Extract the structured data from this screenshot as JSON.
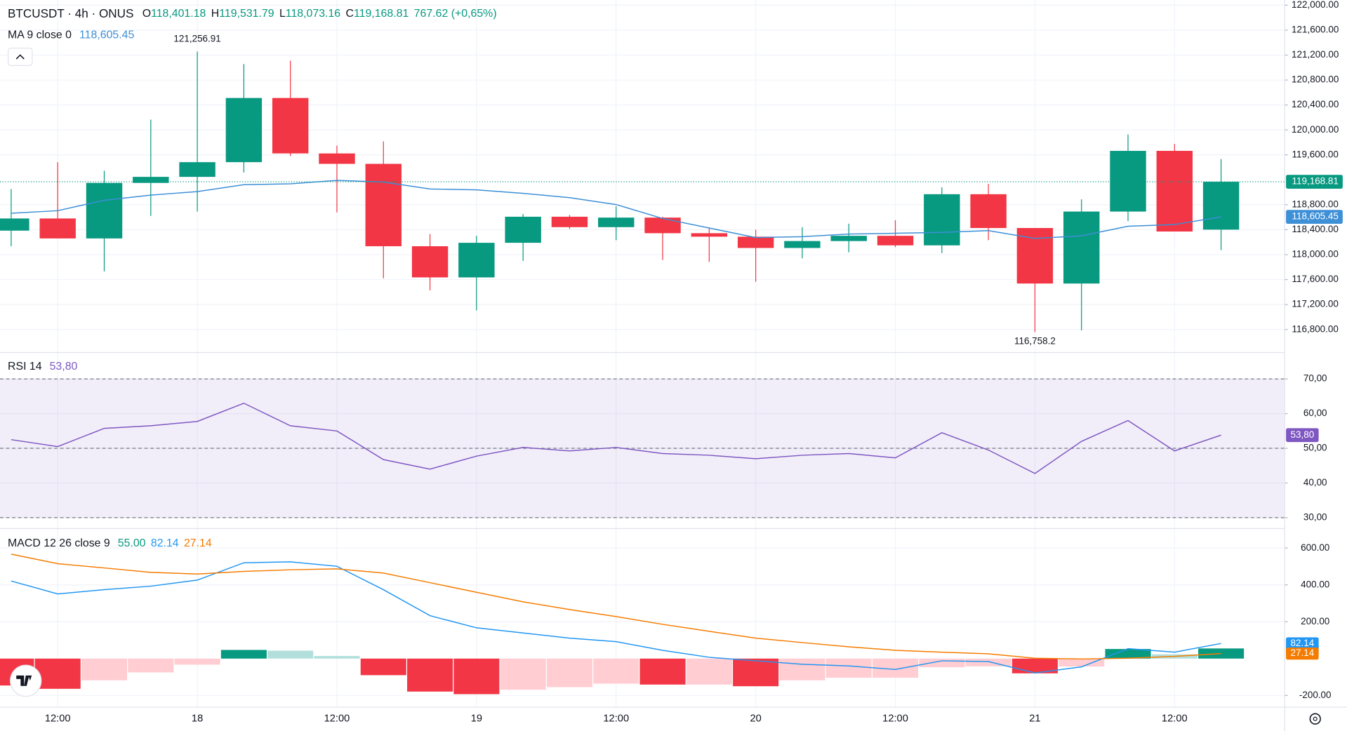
{
  "chart_data": [
    {
      "type": "candlestick",
      "title": "BTCUSDT · 4h · ONUS",
      "legend": {
        "o_label": "O",
        "o": "118,401.18",
        "h_label": "H",
        "h": "119,531.79",
        "l_label": "L",
        "l": "118,073.16",
        "c_label": "C",
        "c": "119,168.81",
        "change": "767.62 (+0,65%)"
      },
      "categories": [
        null,
        "12:00",
        null,
        null,
        "18",
        null,
        null,
        "12:00",
        null,
        null,
        "19",
        null,
        null,
        "12:00",
        null,
        null,
        "20",
        null,
        null,
        "12:00",
        null,
        null,
        "21",
        null,
        null,
        "12:00",
        null
      ],
      "open": [
        118385,
        118580,
        118260,
        119150,
        119247,
        119483,
        120512,
        119623,
        119456,
        118135,
        117635,
        118190,
        118608,
        118441,
        118594,
        118344,
        118288,
        118107,
        118218,
        118302,
        118149,
        118969,
        118427,
        117537,
        118691,
        119664,
        118401.18
      ],
      "high": [
        119052,
        119483,
        119345,
        120165,
        121256.91,
        121055,
        121110,
        119748,
        119817,
        118330,
        118302,
        118650,
        118636,
        118775,
        118608,
        118427,
        118399,
        118441,
        118496,
        118552,
        119080,
        119136,
        118427,
        118886,
        119928,
        119775,
        119531.79
      ],
      "low": [
        118135,
        118260,
        117732,
        118621,
        118691,
        119317,
        119581,
        118677,
        117620,
        117427,
        117106,
        117899,
        118413,
        118232,
        117913,
        117885,
        117565,
        117941,
        118037,
        118121,
        118024,
        118232,
        116758.2,
        116786,
        118538,
        118371,
        118073.16
      ],
      "close": [
        118580,
        118260,
        119150,
        119247,
        119483,
        120512,
        119623,
        119456,
        118135,
        117635,
        118190,
        118608,
        118441,
        118594,
        118344,
        118288,
        118107,
        118218,
        118302,
        118149,
        118969,
        118427,
        117537,
        118691,
        119664,
        118371,
        119168.81
      ],
      "up_color": "#089981",
      "down_color": "#f23645",
      "overlay": {
        "name": "MA 9 close 0",
        "value_label": "118,605.45",
        "color": "#3d8fd6",
        "values": [
          118663,
          118705,
          118872,
          118955,
          119011,
          119122,
          119136,
          119191,
          119164,
          119053,
          119039,
          118983,
          118914,
          118803,
          118580,
          118427,
          118274,
          118288,
          118330,
          118343,
          118357,
          118385,
          118260,
          118302,
          118455,
          118483,
          118605.45
        ]
      },
      "annotations": {
        "high_label": "121,256.91",
        "low_label": "116,758.2"
      },
      "ylim": [
        116452,
        122083
      ],
      "yticks": [
        {
          "value": 122000,
          "label": "122,000.00"
        },
        {
          "value": 121600,
          "label": "121,600.00"
        },
        {
          "value": 121200,
          "label": "121,200.00"
        },
        {
          "value": 120800,
          "label": "120,800.00"
        },
        {
          "value": 120400,
          "label": "120,400.00"
        },
        {
          "value": 120000,
          "label": "120,000.00"
        },
        {
          "value": 119600,
          "label": "119,600.00"
        },
        {
          "value": 118800,
          "label": "118,800.00"
        },
        {
          "value": 118400,
          "label": "118,400.00"
        },
        {
          "value": 118000,
          "label": "118,000.00"
        },
        {
          "value": 117600,
          "label": "117,600.00"
        },
        {
          "value": 117200,
          "label": "117,200.00"
        },
        {
          "value": 116800,
          "label": "116,800.00"
        }
      ],
      "grid": true
    },
    {
      "type": "line",
      "title": "RSI 14",
      "value_label": "53,80",
      "color": "#7e57c2",
      "values": [
        52.5,
        50.5,
        55.75,
        56.5,
        57.75,
        63,
        56.5,
        55,
        46.75,
        44,
        47.75,
        50.25,
        49.25,
        50.25,
        48.5,
        48,
        47,
        48,
        48.5,
        47.25,
        54.5,
        49.5,
        42.75,
        52,
        58,
        49.25,
        53.8
      ],
      "levels": [
        70,
        50,
        30
      ],
      "ylim": [
        27.25,
        77.25
      ],
      "yticks": [
        {
          "value": 70,
          "label": "70,00"
        },
        {
          "value": 60,
          "label": "60,00"
        },
        {
          "value": 50,
          "label": "50,00"
        },
        {
          "value": 40,
          "label": "40,00"
        },
        {
          "value": 30,
          "label": "30,00"
        }
      ]
    },
    {
      "type": "macd",
      "title": "MACD 12 26 close 9",
      "series": [
        {
          "name": "histogram",
          "value_label": "55.00",
          "colors": {
            "grow_up": "#089981",
            "fall_up": "#b2dfdb",
            "grow_down": "#ffcdd2",
            "fall_down": "#f23645"
          },
          "values": [
            -146,
            -164,
            -118,
            -75,
            -33,
            47,
            43,
            14,
            -90,
            -179,
            -193,
            -169,
            -155,
            -136,
            -141,
            -141,
            -150,
            -118,
            -104,
            -104,
            -47,
            -42,
            -80,
            -43,
            52,
            23,
            55.0
          ]
        },
        {
          "name": "macd",
          "value_label": "82.14",
          "color": "#2196f3",
          "values": [
            421,
            351,
            374,
            393,
            426,
            520,
            525,
            501,
            374,
            233,
            167,
            139,
            111,
            92,
            45,
            7,
            -12,
            -31,
            -40,
            -59,
            -12,
            -16,
            -78,
            -45,
            54,
            35,
            82.14
          ]
        },
        {
          "name": "signal",
          "value_label": "27.14",
          "color": "#f57c00",
          "values": [
            567,
            515,
            492,
            468,
            459,
            473,
            482,
            487,
            464,
            412,
            360,
            308,
            266,
            228,
            186,
            148,
            111,
            87,
            64,
            45,
            35,
            26,
            2,
            -2,
            2,
            12,
            27.14
          ]
        }
      ],
      "ylim": [
        -261.2,
        698.8
      ],
      "yticks": [
        {
          "value": 600,
          "label": "600.00"
        },
        {
          "value": 400,
          "label": "400.00"
        },
        {
          "value": 200,
          "label": "200.00"
        },
        {
          "value": -200,
          "label": "-200.00"
        }
      ]
    }
  ]
}
